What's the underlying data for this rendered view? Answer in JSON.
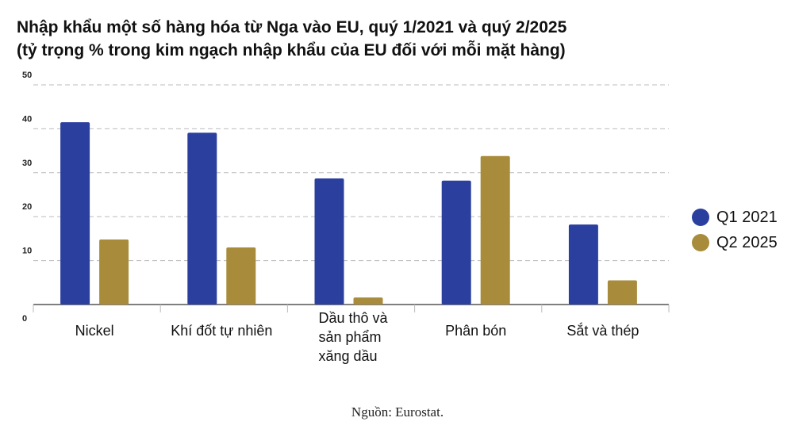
{
  "title_line1": "Nhập khẩu một số hàng hóa từ Nga vào EU, quý 1/2021 và quý 2/2025",
  "title_line2": "(tỷ trọng % trong kim ngạch nhập khẩu của EU đối với mỗi mặt hàng)",
  "source": "Nguồn: Eurostat.",
  "colors": {
    "q1_2021": "#2b3f9e",
    "q2_2025": "#a88c3c",
    "grid": "#bbbbbb",
    "axis": "#555555"
  },
  "chart_data": {
    "type": "bar",
    "categories": [
      [
        "Nickel"
      ],
      [
        "Khí đốt tự nhiên"
      ],
      [
        "Dầu thô và",
        "sản phẩm",
        "xăng dầu"
      ],
      [
        "Phân bón"
      ],
      [
        "Sắt và thép"
      ]
    ],
    "series": [
      {
        "name": "Q1 2021",
        "values": [
          41.5,
          39.1,
          28.7,
          28.2,
          18.2
        ]
      },
      {
        "name": "Q2 2025",
        "values": [
          14.8,
          13.0,
          1.6,
          33.8,
          5.5
        ]
      }
    ],
    "yticks": [
      0,
      10,
      20,
      30,
      40,
      50
    ],
    "ylim": [
      0,
      50
    ],
    "grid": true,
    "legend_position": "right"
  }
}
